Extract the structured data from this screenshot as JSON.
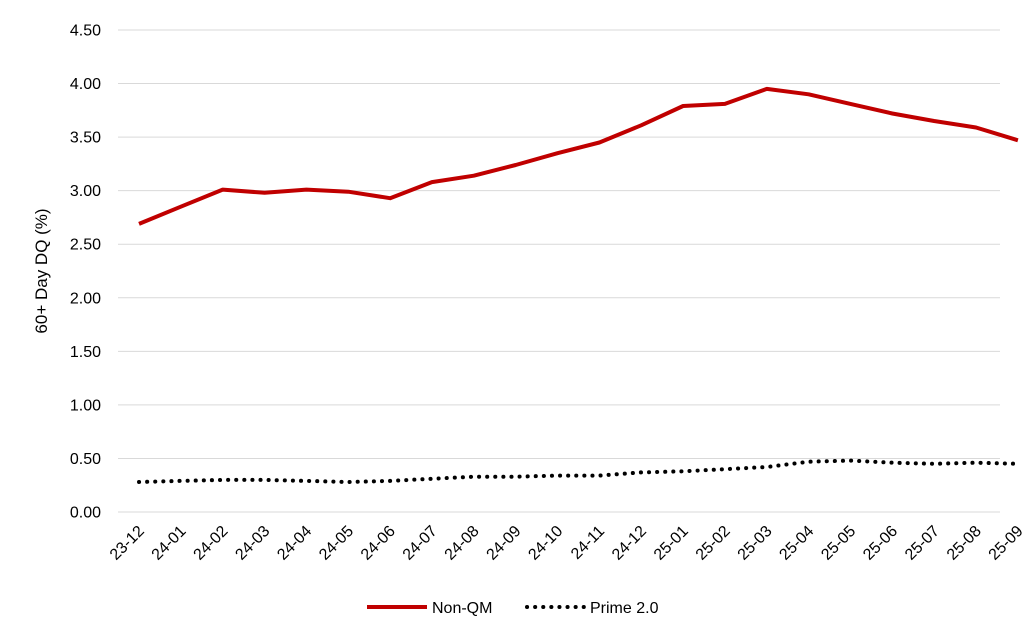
{
  "chart_data": {
    "type": "line",
    "title": "",
    "xlabel": "",
    "ylabel": "60+ Day DQ (%)",
    "ylim": [
      0,
      4.5
    ],
    "yticks": [
      "0.00",
      "0.50",
      "1.00",
      "1.50",
      "2.00",
      "2.50",
      "3.00",
      "3.50",
      "4.00",
      "4.50"
    ],
    "grid": "horizontal",
    "legend_position": "bottom",
    "categories": [
      "23-12",
      "24-01",
      "24-02",
      "24-03",
      "24-04",
      "24-05",
      "24-06",
      "24-07",
      "24-08",
      "24-09",
      "24-10",
      "24-11",
      "24-12",
      "25-01",
      "25-02",
      "25-03",
      "25-04",
      "25-05",
      "25-06",
      "25-07",
      "25-08",
      "25-09"
    ],
    "series": [
      {
        "name": "Non-QM",
        "color": "#C00000",
        "style": "solid",
        "values": [
          2.69,
          2.85,
          3.01,
          2.98,
          3.01,
          2.99,
          2.93,
          3.08,
          3.14,
          3.24,
          3.35,
          3.45,
          3.61,
          3.79,
          3.81,
          3.95,
          3.9,
          3.81,
          3.72,
          3.65,
          3.59,
          3.47
        ]
      },
      {
        "name": "Prime 2.0",
        "color": "#000000",
        "style": "dotted",
        "values": [
          0.28,
          0.29,
          0.3,
          0.3,
          0.29,
          0.28,
          0.29,
          0.31,
          0.33,
          0.33,
          0.34,
          0.34,
          0.37,
          0.38,
          0.4,
          0.42,
          0.47,
          0.48,
          0.46,
          0.45,
          0.46,
          0.45
        ]
      }
    ]
  }
}
